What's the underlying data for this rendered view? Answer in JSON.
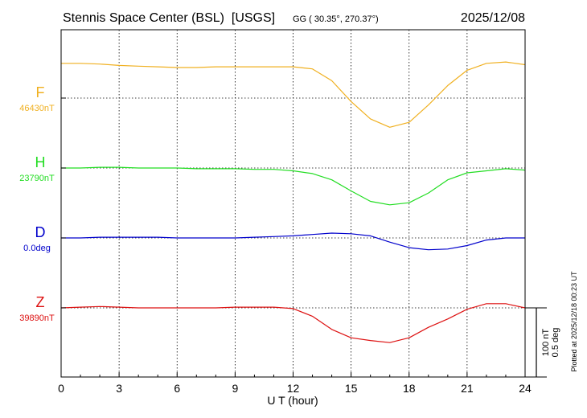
{
  "header": {
    "title": "Stennis Space Center (BSL)  [USGS]",
    "coords": "GG ( 30.35°, 270.37°)",
    "date": "2025/12/08"
  },
  "plotted_note": "Plotted at 2025/12/18 00:23 UT",
  "scale_bar": {
    "line1": "100 nT",
    "line2": "0.5 deg"
  },
  "chart_data": {
    "type": "line",
    "xlabel": "U T (hour)",
    "xlim": [
      0,
      24
    ],
    "xticks": [
      0,
      3,
      6,
      9,
      12,
      15,
      18,
      21,
      24
    ],
    "xtick_labels": [
      "0",
      "3",
      "6",
      "9",
      "12",
      "15",
      "18",
      "21",
      "24"
    ],
    "grid": true,
    "y_scale_per_division": "100 nT / 0.5 deg",
    "series": [
      {
        "name": "F",
        "baseline_label": "46430nT",
        "unit": "nT",
        "baseline": 46430,
        "color": "#f0b020",
        "x": [
          0,
          1,
          2,
          3,
          4,
          5,
          6,
          7,
          8,
          9,
          10,
          11,
          12,
          13,
          14,
          15,
          16,
          17,
          18,
          19,
          20,
          21,
          22,
          23,
          24
        ],
        "values": [
          46480,
          46480,
          46479,
          46477,
          46476,
          46475,
          46474,
          46474,
          46475,
          46475,
          46475,
          46475,
          46475,
          46472,
          46455,
          46425,
          46400,
          46388,
          46395,
          46420,
          46448,
          46470,
          46480,
          46482,
          46478
        ]
      },
      {
        "name": "H",
        "baseline_label": "23790nT",
        "unit": "nT",
        "baseline": 23790,
        "color": "#22dd22",
        "x": [
          0,
          1,
          2,
          3,
          4,
          5,
          6,
          7,
          8,
          9,
          10,
          11,
          12,
          13,
          14,
          15,
          16,
          17,
          18,
          19,
          20,
          21,
          22,
          23,
          24
        ],
        "values": [
          23790,
          23790,
          23791,
          23791,
          23790,
          23790,
          23790,
          23789,
          23789,
          23789,
          23788,
          23788,
          23786,
          23782,
          23773,
          23757,
          23742,
          23737,
          23740,
          23754,
          23773,
          23783,
          23786,
          23789,
          23787
        ]
      },
      {
        "name": "D",
        "baseline_label": "0.0deg",
        "unit": "deg",
        "baseline": 0.0,
        "color": "#0000cc",
        "x": [
          0,
          1,
          2,
          3,
          4,
          5,
          6,
          7,
          8,
          9,
          10,
          11,
          12,
          13,
          14,
          15,
          16,
          17,
          18,
          19,
          20,
          21,
          22,
          23,
          24
        ],
        "values": [
          0.0,
          0.0,
          0.005,
          0.005,
          0.005,
          0.005,
          0.0,
          0.0,
          0.0,
          0.0,
          0.005,
          0.01,
          0.015,
          0.025,
          0.035,
          0.03,
          0.015,
          -0.03,
          -0.07,
          -0.085,
          -0.08,
          -0.055,
          -0.015,
          0.0,
          0.0
        ]
      },
      {
        "name": "Z",
        "baseline_label": "39890nT",
        "unit": "nT",
        "baseline": 39890,
        "color": "#dd1111",
        "x": [
          0,
          1,
          2,
          3,
          4,
          5,
          6,
          7,
          8,
          9,
          10,
          11,
          12,
          13,
          14,
          15,
          16,
          17,
          18,
          19,
          20,
          21,
          22,
          23,
          24
        ],
        "values": [
          39890,
          39891,
          39892,
          39891,
          39890,
          39890,
          39890,
          39890,
          39890,
          39891,
          39891,
          39891,
          39889,
          39878,
          39859,
          39847,
          39843,
          39840,
          39847,
          39862,
          39874,
          39888,
          39896,
          39896,
          39890
        ]
      }
    ]
  }
}
